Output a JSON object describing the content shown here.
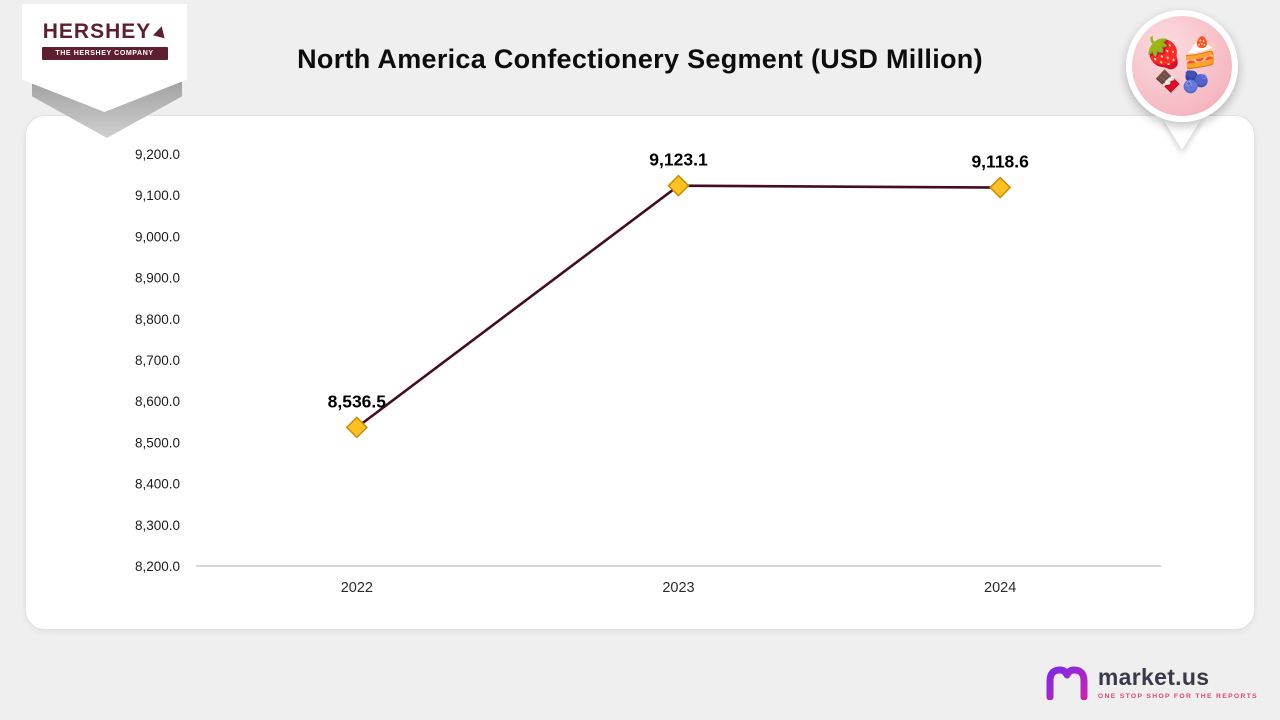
{
  "header": {
    "title": "North America Confectionery Segment  (USD Million)",
    "hershey_logo": {
      "name": "HERSHEY",
      "subtitle": "THE HERSHEY COMPANY",
      "brand_color": "#5e1f31"
    },
    "badge_icon": "dessert-pin-icon",
    "badge_emoji_row1": "🍓🍰",
    "badge_emoji_row2": "🍫🫐"
  },
  "chart_data": {
    "type": "line",
    "title": "North America Confectionery Segment (USD Million)",
    "categories": [
      "2022",
      "2023",
      "2024"
    ],
    "series": [
      {
        "name": "North America Confectionery Segment",
        "values": [
          8536.5,
          9123.1,
          9118.6
        ]
      }
    ],
    "data_labels": [
      "8,536.5",
      "9,123.1",
      "9,118.6"
    ],
    "ylim": [
      8200,
      9200
    ],
    "ytick_step": 100,
    "ytick_labels": [
      "8,200.0",
      "8,300.0",
      "8,400.0",
      "8,500.0",
      "8,600.0",
      "8,700.0",
      "8,800.0",
      "8,900.0",
      "9,000.0",
      "9,100.0",
      "9,200.0"
    ],
    "xlabel": "",
    "ylabel": "",
    "grid": false,
    "legend": "none",
    "line_color": "#430d25",
    "marker_color": "#ffc222",
    "marker_border": "#cc8a00",
    "axis_line_color": "#c9c9c9"
  },
  "footer": {
    "brand": "market.us",
    "tagline": "ONE STOP SHOP FOR THE REPORTS",
    "brand_color": "#7d2ae8",
    "icon": "m-logo-icon"
  }
}
